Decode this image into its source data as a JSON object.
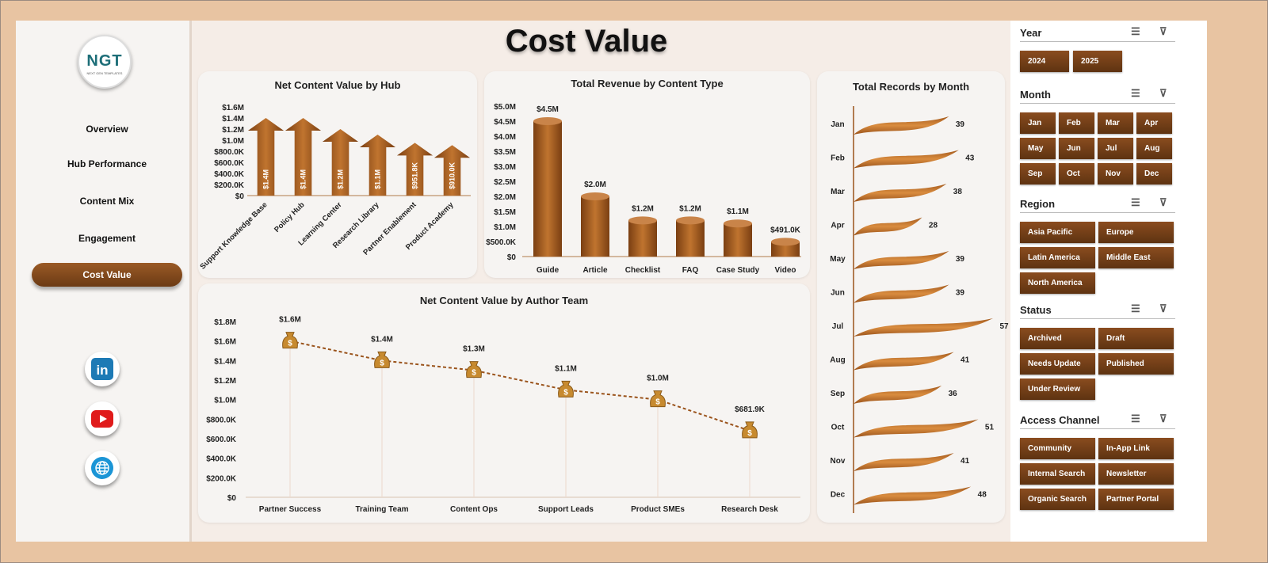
{
  "logo": {
    "text": "NGT",
    "subtext": "NEXT GEN TEMPLATES"
  },
  "title": "Cost Value",
  "nav": [
    "Overview",
    "Hub Performance",
    "Content Mix",
    "Engagement",
    "Cost Value"
  ],
  "nav_active": "Cost Value",
  "social": [
    "linkedin-icon",
    "youtube-icon",
    "globe-icon"
  ],
  "colors": {
    "brown": "#7a4318",
    "accent": "#b86a2a",
    "bg": "#f5ede7"
  },
  "chart_data": [
    {
      "type": "bar",
      "title": "Net Content  Value by Hub",
      "categories": [
        "Support Knowledge Base",
        "Policy Hub",
        "Learning Center",
        "Research Library",
        "Partner Enablement",
        "Product Academy"
      ],
      "values": [
        1.4,
        1.4,
        1.2,
        1.1,
        0.9518,
        0.91
      ],
      "labels": [
        "$1.4M",
        "$1.4M",
        "$1.2M",
        "$1.1M",
        "$951.8K",
        "$910.0K"
      ],
      "yticks": [
        "$0",
        "$200.0K",
        "$400.0K",
        "$600.0K",
        "$800.0K",
        "$1.0M",
        "$1.2M",
        "$1.4M",
        "$1.6M"
      ],
      "ylim": [
        0,
        1.6
      ]
    },
    {
      "type": "bar",
      "title": "Total Revenue  by Content Type",
      "categories": [
        "Guide",
        "Article",
        "Checklist",
        "FAQ",
        "Case Study",
        "Video"
      ],
      "values": [
        4.5,
        2.0,
        1.2,
        1.2,
        1.1,
        0.491
      ],
      "labels": [
        "$4.5M",
        "$2.0M",
        "$1.2M",
        "$1.2M",
        "$1.1M",
        "$491.0K"
      ],
      "yticks": [
        "$0",
        "$500.0K",
        "$1.0M",
        "$1.5M",
        "$2.0M",
        "$2.5M",
        "$3.0M",
        "$3.5M",
        "$4.0M",
        "$4.5M",
        "$5.0M"
      ],
      "ylim": [
        0,
        5.0
      ]
    },
    {
      "type": "line",
      "title": "Net Content  Value by Author Team",
      "categories": [
        "Partner Success",
        "Training Team",
        "Content Ops",
        "Support Leads",
        "Product SMEs",
        "Research Desk"
      ],
      "values": [
        1.6,
        1.4,
        1.3,
        1.1,
        1.0,
        0.6819
      ],
      "labels": [
        "$1.6M",
        "$1.4M",
        "$1.3M",
        "$1.1M",
        "$1.0M",
        "$681.9K"
      ],
      "yticks": [
        "$0",
        "$200.0K",
        "$400.0K",
        "$600.0K",
        "$800.0K",
        "$1.0M",
        "$1.2M",
        "$1.4M",
        "$1.6M",
        "$1.8M"
      ],
      "ylim": [
        0,
        1.8
      ]
    },
    {
      "type": "bar",
      "title": "Total Records by Month",
      "orientation": "horizontal",
      "categories": [
        "Jan",
        "Feb",
        "Mar",
        "Apr",
        "May",
        "Jun",
        "Jul",
        "Aug",
        "Sep",
        "Oct",
        "Nov",
        "Dec"
      ],
      "values": [
        39,
        43,
        38,
        28,
        39,
        39,
        57,
        41,
        36,
        51,
        41,
        48
      ]
    }
  ],
  "filters": [
    {
      "label": "Year",
      "items": [
        "2024",
        "2025"
      ],
      "cols": 3
    },
    {
      "label": "Month",
      "items": [
        "Jan",
        "Feb",
        "Mar",
        "Apr",
        "May",
        "Jun",
        "Jul",
        "Aug",
        "Sep",
        "Oct",
        "Nov",
        "Dec"
      ],
      "cols": 4
    },
    {
      "label": "Region",
      "items": [
        "Asia Pacific",
        "Europe",
        "Latin America",
        "Middle East",
        "North America"
      ],
      "cols": 2
    },
    {
      "label": "Status",
      "items": [
        "Archived",
        "Draft",
        "Needs Update",
        "Published",
        "Under Review"
      ],
      "cols": 2
    },
    {
      "label": "Access Channel",
      "items": [
        "Community",
        "In-App Link",
        "Internal Search",
        "Newsletter",
        "Organic Search",
        "Partner Portal"
      ],
      "cols": 2
    }
  ]
}
